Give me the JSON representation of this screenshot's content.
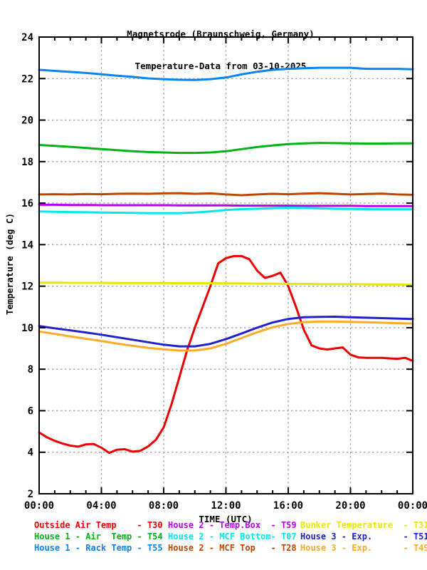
{
  "header": {
    "title": "Magnetsrode (Braunschweig, Germany)",
    "subtitle": "Temperature-Data from 03-10-2025"
  },
  "chart_data": {
    "type": "line",
    "title": "Magnetsrode (Braunschweig, Germany)",
    "subtitle": "Temperature-Data from 03-10-2025",
    "xlabel": "TIME (UTC)",
    "ylabel": "Temperature (deg C)",
    "xlim": [
      0,
      24
    ],
    "ylim": [
      2,
      24
    ],
    "grid": true,
    "x_minor_step_hours": 1,
    "x_tick_hours": [
      0,
      4,
      8,
      12,
      16,
      20,
      24
    ],
    "x_tick_labels": [
      "00:00",
      "04:00",
      "08:00",
      "12:00",
      "16:00",
      "20:00",
      "00:00"
    ],
    "y_ticks": [
      2,
      4,
      6,
      8,
      10,
      12,
      14,
      16,
      18,
      20,
      22,
      24
    ],
    "colors": {
      "grid": "#a8a8a8",
      "axis": "#000000"
    },
    "series": [
      {
        "name": "Outside Air Temp",
        "sensor": "T30",
        "color": "#ee0000",
        "x": [
          0,
          0.5,
          1,
          1.5,
          2,
          2.5,
          3,
          3.5,
          4,
          4.5,
          5,
          5.5,
          6,
          6.5,
          7,
          7.5,
          8,
          8.5,
          9,
          9.5,
          10,
          10.5,
          11,
          11.5,
          12,
          12.5,
          13,
          13.5,
          14,
          14.5,
          15,
          15.5,
          16,
          16.5,
          17,
          17.5,
          18,
          18.5,
          19,
          19.5,
          20,
          20.5,
          21,
          21.5,
          22,
          22.5,
          23,
          23.5,
          24
        ],
        "values": [
          4.95,
          4.72,
          4.55,
          4.42,
          4.32,
          4.27,
          4.38,
          4.4,
          4.22,
          3.97,
          4.12,
          4.15,
          4.03,
          4.07,
          4.28,
          4.6,
          5.2,
          6.3,
          7.6,
          8.9,
          10.0,
          11.0,
          12.0,
          13.1,
          13.35,
          13.45,
          13.45,
          13.3,
          12.75,
          12.4,
          12.5,
          12.65,
          12.0,
          11.0,
          9.9,
          9.15,
          9.0,
          8.95,
          9.0,
          9.05,
          8.7,
          8.57,
          8.55,
          8.55,
          8.55,
          8.52,
          8.5,
          8.55,
          8.4
        ]
      },
      {
        "name": "House 1 - Air  Temp",
        "sensor": "T54",
        "color": "#00b414",
        "x": [
          0,
          1,
          2,
          3,
          4,
          5,
          6,
          7,
          8,
          9,
          10,
          11,
          12,
          13,
          14,
          15,
          16,
          17,
          18,
          19,
          20,
          21,
          22,
          23,
          24
        ],
        "values": [
          18.8,
          18.76,
          18.71,
          18.66,
          18.6,
          18.55,
          18.5,
          18.46,
          18.44,
          18.42,
          18.42,
          18.44,
          18.5,
          18.6,
          18.7,
          18.78,
          18.84,
          18.88,
          18.9,
          18.89,
          18.88,
          18.87,
          18.87,
          18.88,
          18.88
        ]
      },
      {
        "name": "House 1 - Rack Temp",
        "sensor": "T55",
        "color": "#0a84f0",
        "x": [
          0,
          1,
          2,
          3,
          4,
          5,
          6,
          7,
          8,
          9,
          10,
          11,
          12,
          13,
          14,
          15,
          16,
          17,
          18,
          19,
          20,
          21,
          22,
          23,
          24
        ],
        "values": [
          22.42,
          22.37,
          22.32,
          22.27,
          22.21,
          22.14,
          22.08,
          22.01,
          21.97,
          21.94,
          21.93,
          21.97,
          22.05,
          22.2,
          22.33,
          22.42,
          22.47,
          22.5,
          22.52,
          22.52,
          22.52,
          22.47,
          22.47,
          22.47,
          22.45
        ]
      },
      {
        "name": "House 2 - Temp.Box",
        "sensor": "T59",
        "color": "#b800f0",
        "x": [
          0,
          1,
          2,
          3,
          4,
          5,
          6,
          7,
          8,
          9,
          10,
          11,
          12,
          13,
          14,
          15,
          16,
          17,
          18,
          19,
          20,
          21,
          22,
          23,
          24
        ],
        "values": [
          15.92,
          15.92,
          15.91,
          15.91,
          15.9,
          15.9,
          15.9,
          15.9,
          15.9,
          15.89,
          15.89,
          15.89,
          15.89,
          15.88,
          15.88,
          15.88,
          15.88,
          15.87,
          15.87,
          15.87,
          15.87,
          15.86,
          15.86,
          15.86,
          15.86
        ]
      },
      {
        "name": "House 2 - MCF Bottom",
        "sensor": "T07",
        "color": "#00e8e8",
        "x": [
          0,
          1,
          2,
          3,
          4,
          5,
          6,
          7,
          8,
          9,
          10,
          11,
          12,
          13,
          14,
          15,
          16,
          17,
          18,
          19,
          20,
          21,
          22,
          23,
          24
        ],
        "values": [
          15.6,
          15.58,
          15.57,
          15.56,
          15.55,
          15.54,
          15.53,
          15.52,
          15.52,
          15.52,
          15.55,
          15.6,
          15.67,
          15.71,
          15.73,
          15.76,
          15.78,
          15.77,
          15.75,
          15.73,
          15.72,
          15.71,
          15.7,
          15.7,
          15.7
        ]
      },
      {
        "name": "House 2 - MCF Top",
        "sensor": "T28",
        "color": "#bc4700",
        "x": [
          0,
          1,
          2,
          3,
          4,
          5,
          6,
          7,
          8,
          9,
          10,
          11,
          12,
          13,
          14,
          15,
          16,
          17,
          18,
          19,
          20,
          21,
          22,
          23,
          24
        ],
        "values": [
          16.42,
          16.43,
          16.42,
          16.44,
          16.43,
          16.45,
          16.46,
          16.45,
          16.47,
          16.48,
          16.45,
          16.47,
          16.42,
          16.38,
          16.42,
          16.45,
          16.43,
          16.46,
          16.48,
          16.45,
          16.42,
          16.44,
          16.46,
          16.42,
          16.4
        ]
      },
      {
        "name": "Bunker Temperature",
        "sensor": "T31",
        "color": "#e8e800",
        "x": [
          0,
          1,
          2,
          3,
          4,
          5,
          6,
          7,
          8,
          9,
          10,
          11,
          12,
          13,
          14,
          15,
          16,
          17,
          18,
          19,
          20,
          21,
          22,
          23,
          24
        ],
        "values": [
          12.17,
          12.17,
          12.16,
          12.16,
          12.16,
          12.15,
          12.15,
          12.15,
          12.15,
          12.14,
          12.14,
          12.14,
          12.13,
          12.13,
          12.12,
          12.12,
          12.11,
          12.11,
          12.1,
          12.1,
          12.1,
          12.09,
          12.08,
          12.08,
          12.07
        ]
      },
      {
        "name": "House 3 - Exp.",
        "sensor": "T51",
        "color": "#2222cc",
        "x": [
          0,
          1,
          2,
          3,
          4,
          5,
          6,
          7,
          8,
          9,
          10,
          11,
          12,
          13,
          14,
          15,
          16,
          17,
          18,
          19,
          20,
          21,
          22,
          23,
          24
        ],
        "values": [
          10.08,
          9.97,
          9.87,
          9.77,
          9.66,
          9.54,
          9.42,
          9.3,
          9.18,
          9.1,
          9.1,
          9.22,
          9.45,
          9.72,
          10.0,
          10.25,
          10.42,
          10.5,
          10.52,
          10.53,
          10.5,
          10.48,
          10.46,
          10.44,
          10.42
        ]
      },
      {
        "name": "House 3 - Exp.",
        "sensor": "T49",
        "color": "#ffaa28",
        "x": [
          0,
          1,
          2,
          3,
          4,
          5,
          6,
          7,
          8,
          9,
          10,
          11,
          12,
          13,
          14,
          15,
          16,
          17,
          18,
          19,
          20,
          21,
          22,
          23,
          24
        ],
        "values": [
          9.82,
          9.7,
          9.58,
          9.47,
          9.36,
          9.24,
          9.13,
          9.03,
          8.96,
          8.9,
          8.9,
          9.0,
          9.22,
          9.5,
          9.78,
          10.02,
          10.18,
          10.26,
          10.3,
          10.3,
          10.28,
          10.26,
          10.24,
          10.22,
          10.2
        ]
      }
    ]
  },
  "legend": {
    "columns": [
      {
        "entries": [
          {
            "text": "Outside Air Temp    - T30"
          },
          {
            "text": "House 1 - Air  Temp - T54"
          },
          {
            "text": "House 1 - Rack Temp - T55"
          }
        ]
      },
      {
        "entries": [
          {
            "text": "House 2 - Temp.Box  - T59"
          },
          {
            "text": "House 2 - MCF Bottom- T07"
          },
          {
            "text": "House 2 - MCF Top   - T28"
          }
        ]
      },
      {
        "entries": [
          {
            "text": "Bunker Temperature  - T31"
          },
          {
            "text": "House 3 - Exp.      - T51"
          },
          {
            "text": "House 3 - Exp.      - T49"
          }
        ]
      }
    ]
  }
}
